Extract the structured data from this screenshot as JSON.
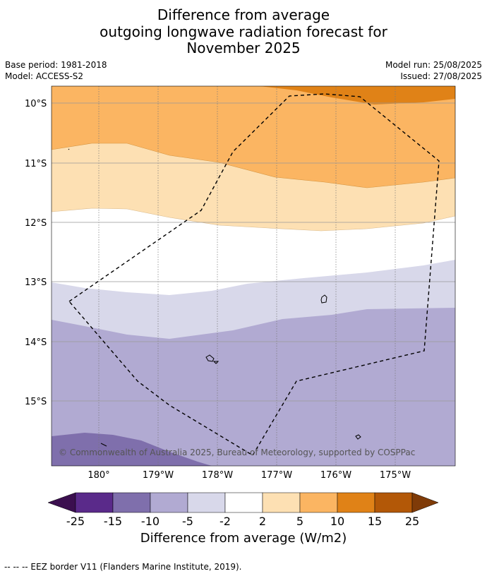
{
  "title": {
    "line1": "Difference from average",
    "line2": "outgoing longwave radiation forecast for",
    "line3": "November 2025"
  },
  "meta": {
    "base_period": "Base period: 1981-2018",
    "model": "Model: ACCESS-S2",
    "model_run": "Model run: 25/08/2025",
    "issued": "Issued: 27/08/2025"
  },
  "map": {
    "lat_labels": [
      "10°S",
      "11°S",
      "12°S",
      "13°S",
      "14°S",
      "15°S"
    ],
    "lon_labels": [
      "180°",
      "179°W",
      "178°W",
      "177°W",
      "176°W",
      "175°W"
    ],
    "copyright": "© Commonwealth of Australia 2025, Bureau of Meteorology, supported by COSPPac"
  },
  "colorbar": {
    "ticks": [
      "-25",
      "-15",
      "-10",
      "-5",
      "-2",
      "2",
      "5",
      "10",
      "15",
      "25"
    ],
    "colors": [
      "#3b0f4f",
      "#5a2a8a",
      "#7f6fac",
      "#b1aad2",
      "#d8d8ea",
      "#ffffff",
      "#fde0b3",
      "#fbb562",
      "#e08217",
      "#b35807",
      "#7f3b08"
    ],
    "title": "Difference from average (W/m2)"
  },
  "footer": "--  --  -- EEZ border V11 (Flanders Marine Institute, 2019)."
}
